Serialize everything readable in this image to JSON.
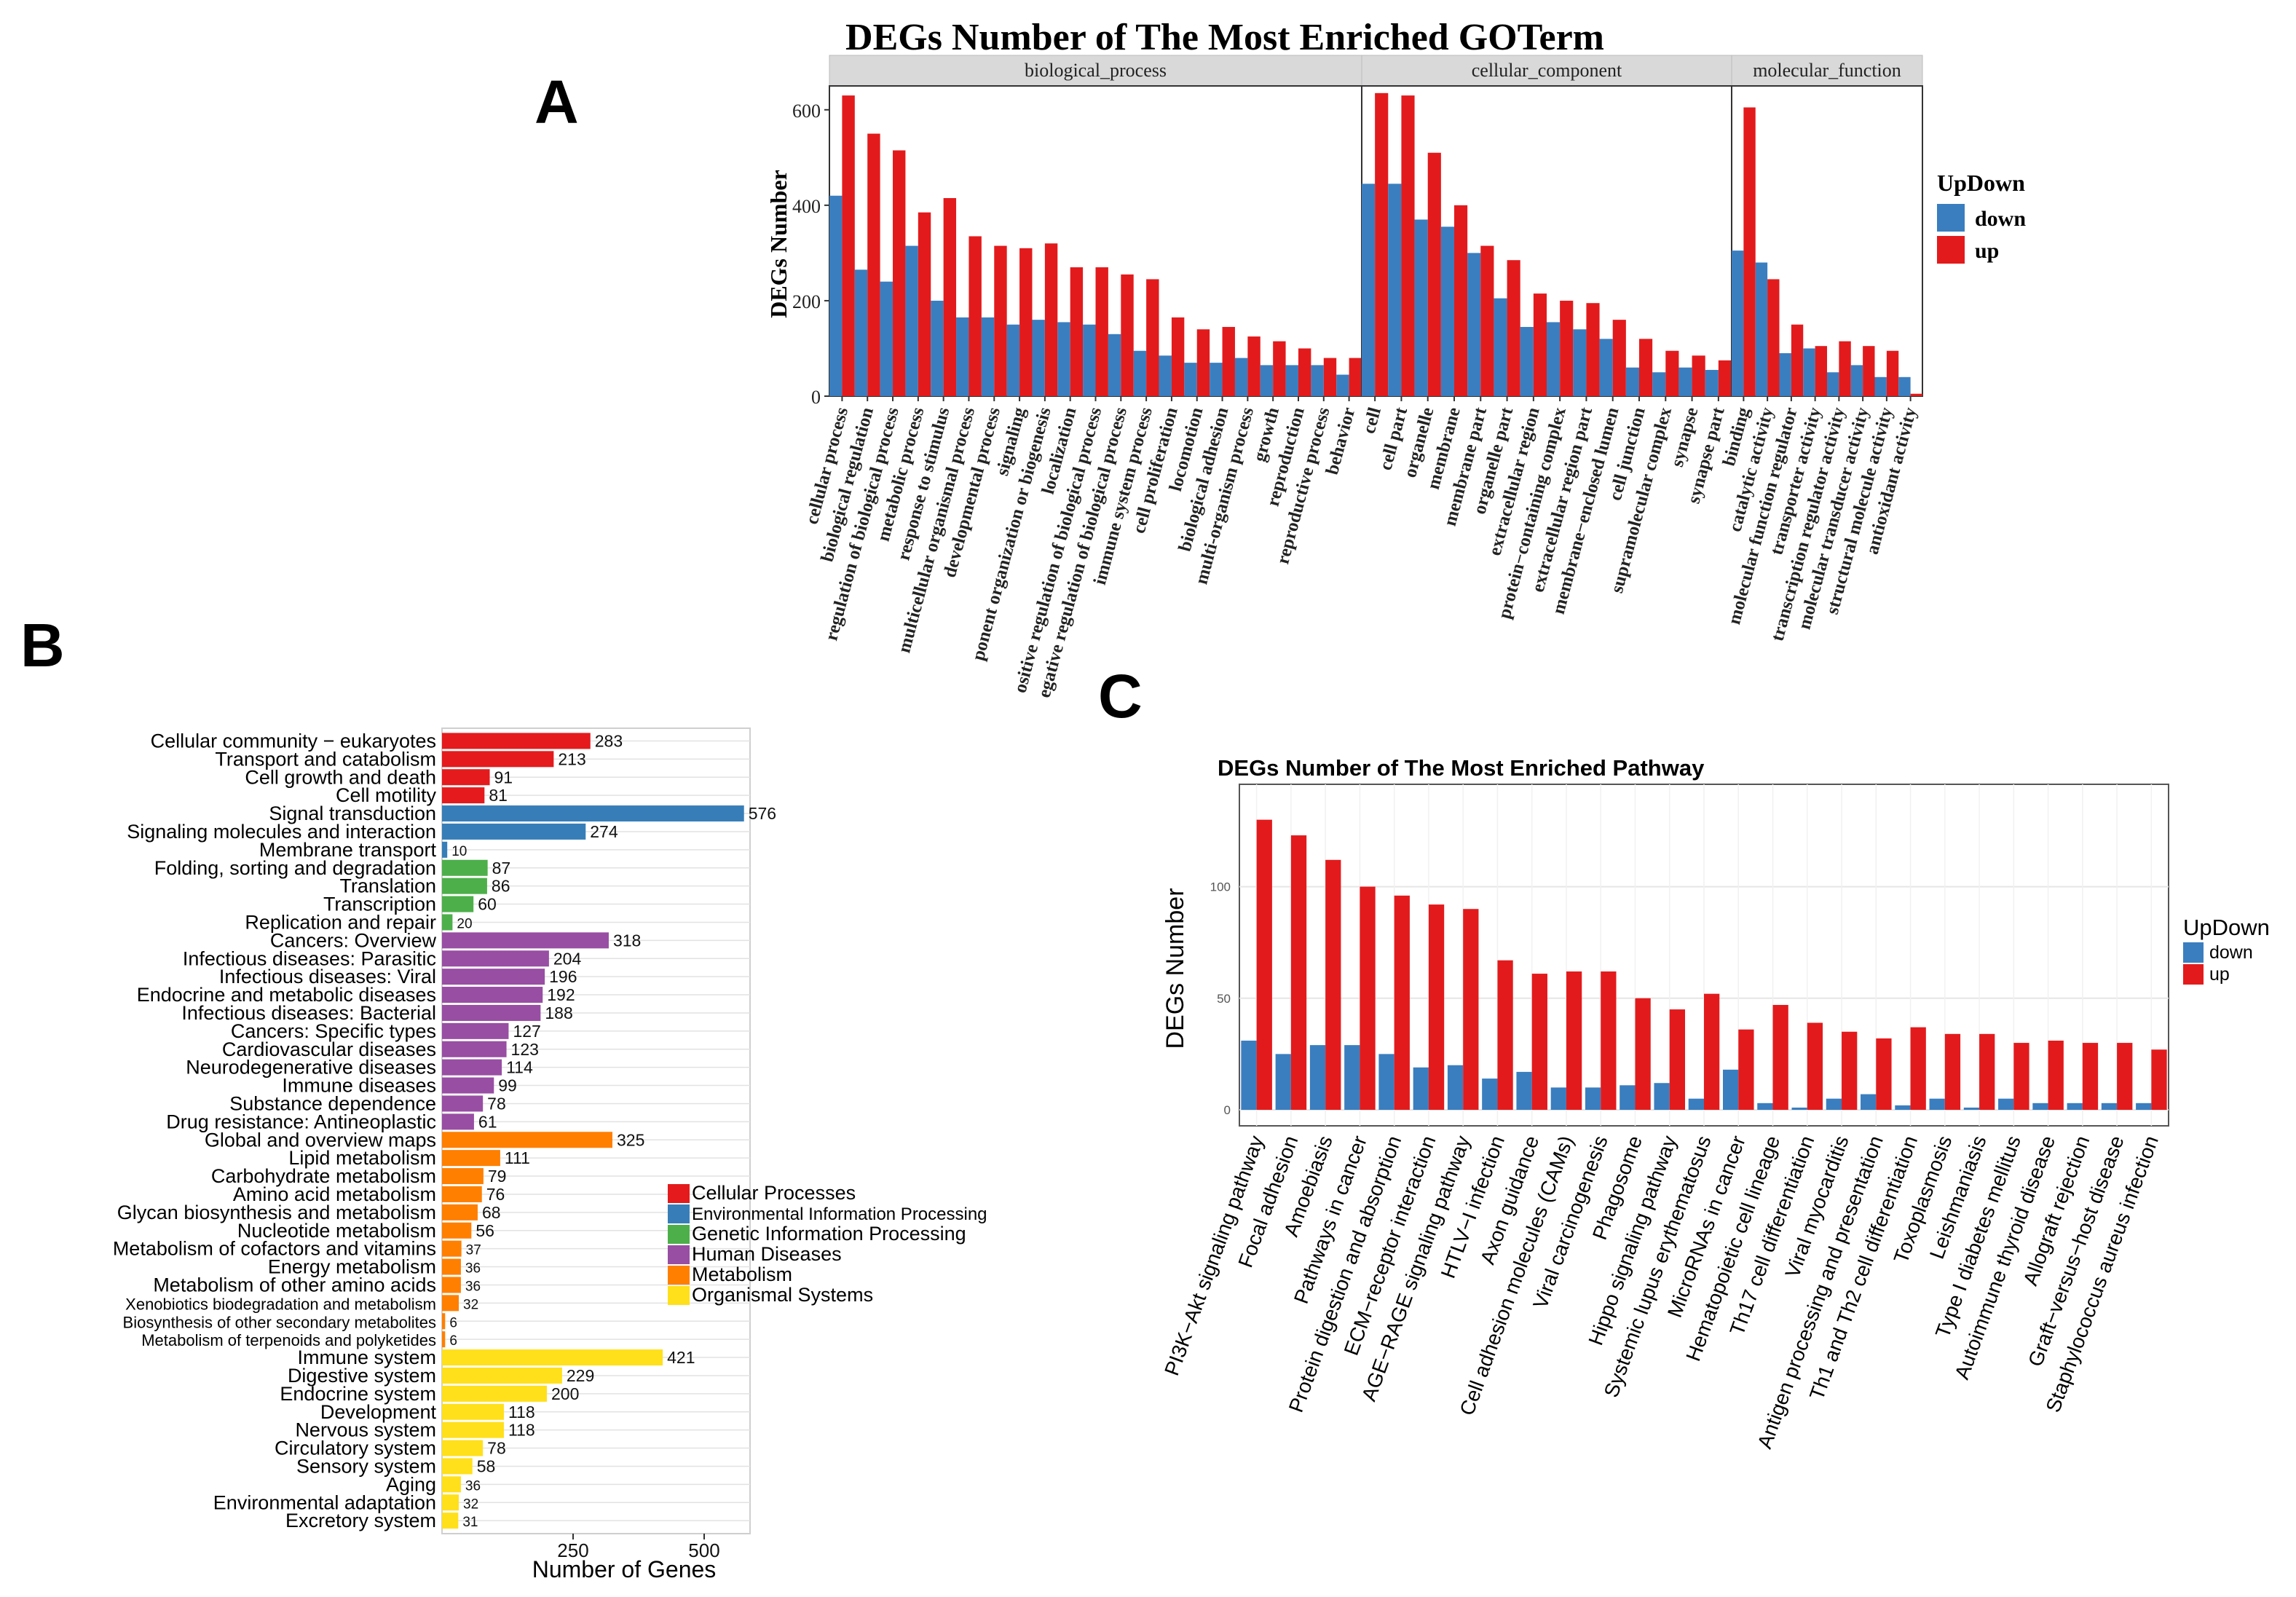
{
  "panel_labels": {
    "a": "A",
    "b": "B",
    "c": "C"
  },
  "colors": {
    "down": "#3a7ebf",
    "up": "#e31a1c",
    "strip": "#d9d9d9",
    "cellular_processes": "#e41a1c",
    "environmental": "#377eb8",
    "genetic": "#4daf4a",
    "human_diseases": "#984ea3",
    "metabolism": "#ff7f00",
    "organismal": "#ffe01a"
  },
  "chart_data": [
    {
      "id": "A",
      "type": "bar",
      "title": "DEGs Number of The Most Enriched GOTerm",
      "ylabel": "DEGs Number",
      "xlabel": "",
      "ylim": [
        0,
        650
      ],
      "y_ticks": [
        0,
        200,
        400,
        600
      ],
      "legend": {
        "title": "UpDown",
        "entries": [
          "down",
          "up"
        ],
        "position": "right"
      },
      "facets": [
        {
          "name": "biological_process",
          "categories": [
            "cellular process",
            "biological regulation",
            "regulation of biological process",
            "metabolic process",
            "response to stimulus",
            "multicellular organismal process",
            "developmental process",
            "signaling",
            "cellular component organization or biogenesis",
            "localization",
            "positive regulation of biological process",
            "negative regulation of biological process",
            "immune system process",
            "cell proliferation",
            "locomotion",
            "biological adhesion",
            "multi-organism process",
            "growth",
            "reproduction",
            "reproductive process",
            "behavior"
          ],
          "display_labels": [
            "cellular process",
            "biological regulation",
            "regulation of biological process",
            "metabolic process",
            "response to stimulus",
            "multicellular organismal process",
            "developmental process",
            "signaling",
            "ponent organization or biogenesis",
            "localization",
            "ositive regulation of biological process",
            "egative regulation of biological process",
            "immune system process",
            "cell proliferation",
            "locomotion",
            "biological adhesion",
            "multi-organism process",
            "growth",
            "reproduction",
            "reproductive process",
            "behavior"
          ],
          "series": [
            {
              "name": "down",
              "values": [
                420,
                265,
                240,
                315,
                200,
                165,
                165,
                150,
                160,
                155,
                150,
                130,
                95,
                85,
                70,
                70,
                80,
                65,
                65,
                65,
                45
              ]
            },
            {
              "name": "up",
              "values": [
                630,
                550,
                515,
                385,
                415,
                335,
                315,
                310,
                320,
                270,
                270,
                255,
                245,
                165,
                140,
                145,
                125,
                115,
                100,
                80,
                80
              ]
            }
          ]
        },
        {
          "name": "cellular_component",
          "categories": [
            "cell",
            "cell part",
            "organelle",
            "membrane",
            "membrane part",
            "organelle part",
            "extracellular region",
            "protein-containing complex",
            "extracellular region part",
            "membrane-enclosed lumen",
            "cell junction",
            "supramolecular complex",
            "synapse",
            "synapse part"
          ],
          "display_labels": [
            "cell",
            "cell part",
            "organelle",
            "membrane",
            "membrane part",
            "organelle part",
            "extracellular region",
            "protein−containing complex",
            "extracellular region part",
            "membrane−enclosed lumen",
            "cell junction",
            "supramolecular complex",
            "synapse",
            "synapse part"
          ],
          "series": [
            {
              "name": "down",
              "values": [
                445,
                445,
                370,
                355,
                300,
                205,
                145,
                155,
                140,
                120,
                60,
                50,
                60,
                55
              ]
            },
            {
              "name": "up",
              "values": [
                635,
                630,
                510,
                400,
                315,
                285,
                215,
                200,
                195,
                160,
                120,
                95,
                85,
                75
              ]
            }
          ]
        },
        {
          "name": "molecular_function",
          "categories": [
            "binding",
            "catalytic activity",
            "molecular function regulator",
            "transporter activity",
            "transcription regulator activity",
            "molecular transducer activity",
            "structural molecule activity",
            "antioxidant activity"
          ],
          "display_labels": [
            "binding",
            "catalytic activity",
            "molecular function regulator",
            "transporter activity",
            "transcription regulator activity",
            "molecular transducer activity",
            "structural molecule activity",
            "antioxidant activity"
          ],
          "series": [
            {
              "name": "down",
              "values": [
                305,
                280,
                90,
                100,
                50,
                65,
                40,
                40
              ]
            },
            {
              "name": "up",
              "values": [
                605,
                245,
                150,
                105,
                115,
                105,
                95,
                5
              ]
            }
          ]
        }
      ]
    },
    {
      "id": "B",
      "type": "bar",
      "orientation": "horizontal",
      "title": "",
      "xlabel": "Number of Genes",
      "ylabel": "",
      "x_ticks": [
        250,
        500
      ],
      "xlim": [
        0,
        580
      ],
      "legend": {
        "position": "right",
        "entries": [
          "Cellular Processes",
          "Environmental Information Processing",
          "Genetic Information Processing",
          "Human Diseases",
          "Metabolism",
          "Organismal Systems"
        ]
      },
      "categories": [
        "Cellular community - eukaryotes",
        "Transport and catabolism",
        "Cell growth and death",
        "Cell motility",
        "Signal transduction",
        "Signaling molecules and interaction",
        "Membrane transport",
        "Folding, sorting and degradation",
        "Translation",
        "Transcription",
        "Replication and repair",
        "Cancers: Overview",
        "Infectious diseases: Parasitic",
        "Infectious diseases: Viral",
        "Endocrine and metabolic diseases",
        "Infectious diseases: Bacterial",
        "Cancers: Specific types",
        "Cardiovascular diseases",
        "Neurodegenerative diseases",
        "Immune diseases",
        "Substance dependence",
        "Drug resistance: Antineoplastic",
        "Global and overview maps",
        "Lipid metabolism",
        "Carbohydrate metabolism",
        "Amino acid metabolism",
        "Glycan biosynthesis and metabolism",
        "Nucleotide metabolism",
        "Metabolism of cofactors and vitamins",
        "Energy metabolism",
        "Metabolism of other amino acids",
        "Xenobiotics biodegradation and metabolism",
        "Biosynthesis of other secondary metabolites",
        "Metabolism of terpenoids and polyketides",
        "Immune system",
        "Digestive system",
        "Endocrine system",
        "Development",
        "Nervous system",
        "Circulatory system",
        "Sensory system",
        "Aging",
        "Environmental adaptation",
        "Excretory system"
      ],
      "display_labels": [
        "Cellular community − eukaryotes",
        "Transport and catabolism",
        "Cell growth and death",
        "Cell motility",
        "Signal transduction",
        "Signaling molecules and interaction",
        "Membrane transport",
        "Folding, sorting and degradation",
        "Translation",
        "Transcription",
        "Replication and repair",
        "Cancers: Overview",
        "Infectious diseases: Parasitic",
        "Infectious diseases: Viral",
        "Endocrine and metabolic diseases",
        "Infectious diseases: Bacterial",
        "Cancers: Specific types",
        "Cardiovascular diseases",
        "Neurodegenerative diseases",
        "Immune diseases",
        "Substance dependence",
        "Drug resistance: Antineoplastic",
        "Global and overview maps",
        "Lipid metabolism",
        "Carbohydrate metabolism",
        "Amino acid metabolism",
        "Glycan biosynthesis and metabolism",
        "Nucleotide metabolism",
        "Metabolism of cofactors and vitamins",
        "Energy metabolism",
        "Metabolism of other amino acids",
        "Xenobiotics biodegradation and metabolism",
        "Biosynthesis of other secondary metabolites",
        "Metabolism of terpenoids and polyketides",
        "Immune system",
        "Digestive system",
        "Endocrine system",
        "Development",
        "Nervous system",
        "Circulatory system",
        "Sensory system",
        "Aging",
        "Environmental adaptation",
        "Excretory system"
      ],
      "values": [
        283,
        213,
        91,
        81,
        576,
        274,
        10,
        87,
        86,
        60,
        20,
        318,
        204,
        196,
        192,
        188,
        127,
        123,
        114,
        99,
        78,
        61,
        325,
        111,
        79,
        76,
        68,
        56,
        37,
        36,
        36,
        32,
        6,
        6,
        421,
        229,
        200,
        118,
        118,
        78,
        58,
        36,
        32,
        31
      ],
      "groups": [
        "Cellular Processes",
        "Cellular Processes",
        "Cellular Processes",
        "Cellular Processes",
        "Environmental Information Processing",
        "Environmental Information Processing",
        "Environmental Information Processing",
        "Genetic Information Processing",
        "Genetic Information Processing",
        "Genetic Information Processing",
        "Genetic Information Processing",
        "Human Diseases",
        "Human Diseases",
        "Human Diseases",
        "Human Diseases",
        "Human Diseases",
        "Human Diseases",
        "Human Diseases",
        "Human Diseases",
        "Human Diseases",
        "Human Diseases",
        "Human Diseases",
        "Metabolism",
        "Metabolism",
        "Metabolism",
        "Metabolism",
        "Metabolism",
        "Metabolism",
        "Metabolism",
        "Metabolism",
        "Metabolism",
        "Metabolism",
        "Metabolism",
        "Metabolism",
        "Organismal Systems",
        "Organismal Systems",
        "Organismal Systems",
        "Organismal Systems",
        "Organismal Systems",
        "Organismal Systems",
        "Organismal Systems",
        "Organismal Systems",
        "Organismal Systems",
        "Organismal Systems"
      ]
    },
    {
      "id": "C",
      "type": "bar",
      "title": "DEGs Number of The Most Enriched Pathway",
      "ylabel": "DEGs Number",
      "xlabel": "",
      "ylim": [
        0,
        140
      ],
      "y_ticks": [
        0,
        50,
        100
      ],
      "legend": {
        "title": "UpDown",
        "entries": [
          "down",
          "up"
        ],
        "position": "right"
      },
      "categories": [
        "PI3K-Akt signaling pathway",
        "Focal adhesion",
        "Amoebiasis",
        "Pathways in cancer",
        "Protein digestion and absorption",
        "ECM-receptor interaction",
        "AGE-RAGE signaling pathway",
        "HTLV-I infection",
        "Axon guidance",
        "Cell adhesion molecules (CAMs)",
        "Viral carcinogenesis",
        "Phagosome",
        "Hippo signaling pathway",
        "Systemic lupus erythematosus",
        "MicroRNAs in cancer",
        "Hematopoietic cell lineage",
        "Th17 cell differentiation",
        "Viral myocarditis",
        "Antigen processing and presentation",
        "Th1 and Th2 cell differentiation",
        "Toxoplasmosis",
        "Leishmaniasis",
        "Type I diabetes mellitus",
        "Autoimmune thyroid disease",
        "Allograft rejection",
        "Graft-versus-host disease",
        "Staphylococcus aureus infection"
      ],
      "display_labels": [
        "PI3K−Akt signaling pathway",
        "Focal adhesion",
        "Amoebiasis",
        "Pathways in cancer",
        "Protein digestion and absorption",
        "ECM−receptor interaction",
        "AGE−RAGE signaling pathway",
        "HTLV−I infection",
        "Axon guidance",
        "Cell adhesion molecules (CAMs)",
        "Viral carcinogenesis",
        "Phagosome",
        "Hippo signaling pathway",
        "Systemic lupus erythematosus",
        "MicroRNAs in cancer",
        "Hematopoietic cell lineage",
        "Th17 cell differentiation",
        "Viral myocarditis",
        "Antigen processing and presentation",
        "Th1 and Th2 cell differentiation",
        "Toxoplasmosis",
        "Leishmaniasis",
        "Type I diabetes mellitus",
        "Autoimmune thyroid disease",
        "Allograft rejection",
        "Graft−versus−host disease",
        "Staphylococcus aureus infection"
      ],
      "series": [
        {
          "name": "down",
          "values": [
            31,
            25,
            29,
            29,
            25,
            19,
            20,
            14,
            17,
            10,
            10,
            11,
            12,
            5,
            18,
            3,
            1,
            5,
            7,
            2,
            5,
            1,
            5,
            3,
            3,
            3,
            3
          ]
        },
        {
          "name": "up",
          "values": [
            130,
            123,
            112,
            100,
            96,
            92,
            90,
            67,
            61,
            62,
            62,
            50,
            45,
            52,
            36,
            47,
            39,
            35,
            32,
            37,
            34,
            34,
            30,
            31,
            30,
            30,
            27
          ]
        }
      ]
    }
  ]
}
